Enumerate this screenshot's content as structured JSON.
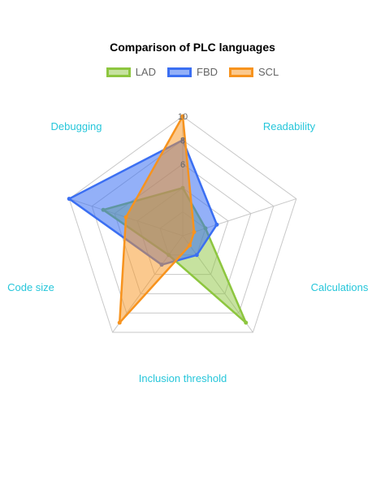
{
  "chart_data": {
    "type": "radar",
    "title": "Comparison of PLC languages",
    "axes": [
      "Readability",
      "Calculations",
      "Inclusion threshold",
      "Code size",
      "Debugging"
    ],
    "range": [
      0,
      10
    ],
    "tick_labels": [
      "10",
      "8",
      "6"
    ],
    "series": [
      {
        "name": "LAD",
        "values": [
          4,
          2,
          9,
          2,
          7
        ]
      },
      {
        "name": "FBD",
        "values": [
          8,
          3,
          2,
          3,
          10
        ]
      },
      {
        "name": "SCL",
        "values": [
          10,
          1,
          1,
          9,
          5
        ]
      }
    ],
    "colors": {
      "LAD": {
        "stroke": "#8dc63f",
        "fill": "rgba(141,198,63,0.5)"
      },
      "FBD": {
        "stroke": "#3b6ff2",
        "fill": "rgba(59,111,242,0.55)"
      },
      "SCL": {
        "stroke": "#f7931e",
        "fill": "rgba(247,147,30,0.5)"
      }
    },
    "label_color": "#26c6da",
    "legend_position": "top"
  }
}
